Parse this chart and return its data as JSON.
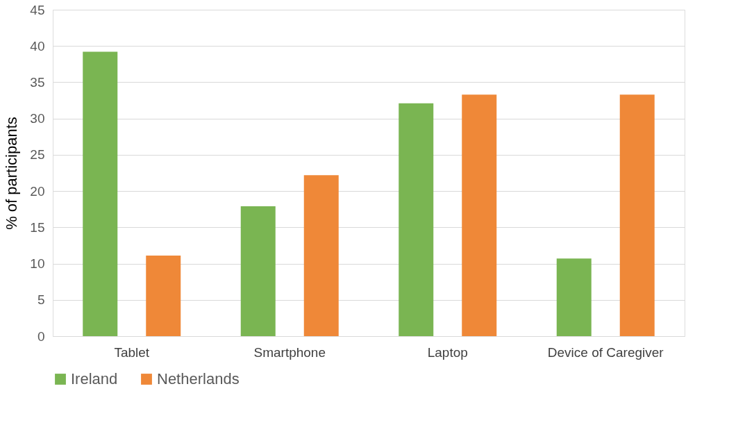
{
  "chart_data": {
    "type": "bar",
    "ylabel": "% of participants",
    "categories": [
      "Tablet",
      "Smartphone",
      "Laptop",
      "Device of Caregiver"
    ],
    "series": [
      {
        "name": "Ireland",
        "color": "#7ab552",
        "values": [
          39.2,
          17.9,
          32.1,
          10.7
        ]
      },
      {
        "name": "Netherlands",
        "color": "#ef8838",
        "values": [
          11.1,
          22.2,
          33.3,
          33.3
        ]
      }
    ],
    "ylim": [
      0,
      45
    ],
    "yticks": [
      0,
      5,
      10,
      15,
      20,
      25,
      30,
      35,
      40,
      45
    ],
    "grid": "y",
    "legend": "bottom"
  }
}
